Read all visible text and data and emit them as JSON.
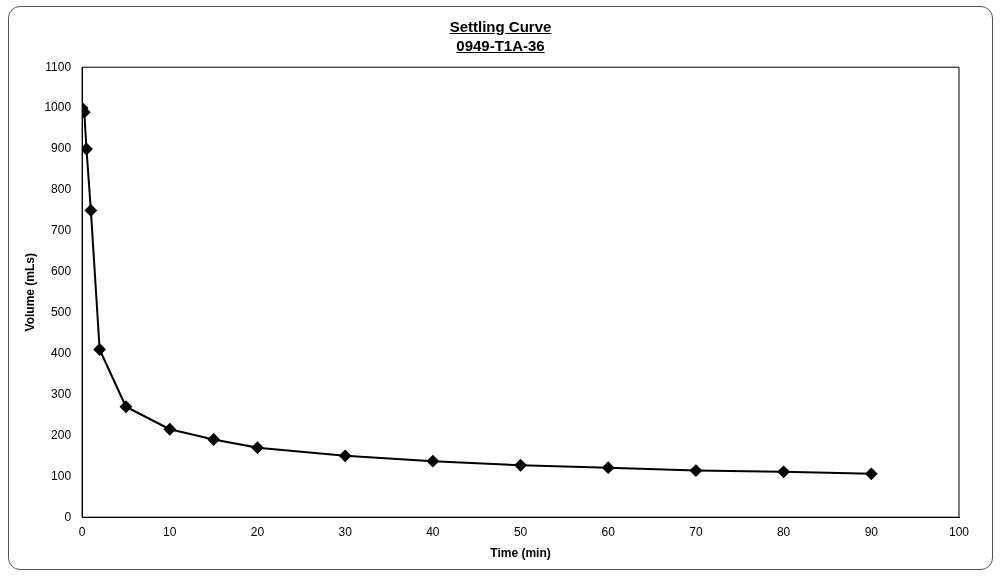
{
  "chart_data": {
    "type": "line",
    "title": "Settling Curve\n0949-T1A-36",
    "xlabel": "Time (min)",
    "ylabel": "Volume (mLs)",
    "x": [
      0,
      0.25,
      0.5,
      1,
      2,
      5,
      10,
      15,
      20,
      30,
      40,
      50,
      60,
      70,
      80,
      90
    ],
    "series": [
      {
        "color": "#000000",
        "values": [
          1000,
          990,
          900,
          750,
          410,
          270,
          215,
          190,
          170,
          150,
          137,
          127,
          121,
          114,
          111,
          106
        ]
      }
    ],
    "xlim": [
      0,
      100
    ],
    "xticks": [
      0,
      10,
      20,
      30,
      40,
      50,
      60,
      70,
      80,
      90,
      100
    ],
    "ylim": [
      0,
      1100
    ],
    "yticks": [
      0,
      100,
      200,
      300,
      400,
      500,
      600,
      700,
      800,
      900,
      1000,
      1100
    ],
    "grid": false,
    "legend": false,
    "marker": "diamond",
    "line_style": "solid"
  }
}
